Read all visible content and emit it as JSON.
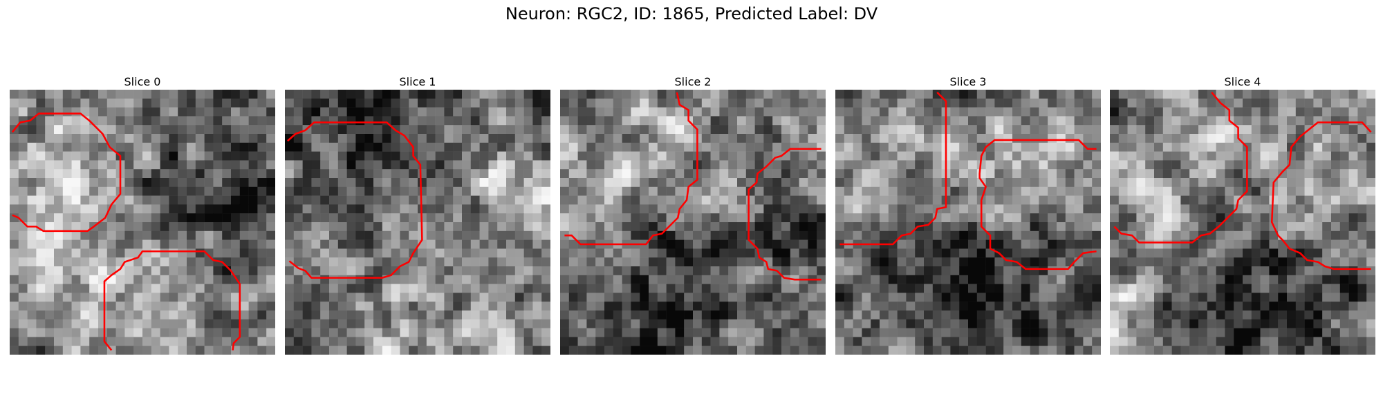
{
  "figure": {
    "title": "Neuron: RGC2, ID: 1865, Predicted Label: DV"
  },
  "grid_size": 30,
  "contour_color": "#ff0000",
  "panels": [
    {
      "title": "Slice 0",
      "seed": 11,
      "blobs": [
        {
          "cx": 6,
          "cy": 8,
          "r": 7,
          "v": 0.22
        },
        {
          "cx": 22,
          "cy": 12,
          "r": 6,
          "v": -0.32
        },
        {
          "cx": 20,
          "cy": 24,
          "r": 6,
          "v": 0.12
        },
        {
          "cx": 8,
          "cy": 22,
          "r": 6,
          "v": 0.18
        }
      ],
      "contours": [
        [
          [
            0.3,
            4.8
          ],
          [
            1.2,
            3.7
          ],
          [
            2.3,
            3.5
          ],
          [
            3.3,
            2.7
          ],
          [
            8.0,
            2.7
          ],
          [
            9.0,
            3.5
          ],
          [
            10.5,
            5
          ],
          [
            11.3,
            6.5
          ],
          [
            12.5,
            7.5
          ],
          [
            12.5,
            11.8
          ],
          [
            11.5,
            13
          ],
          [
            10.8,
            14.5
          ],
          [
            9.5,
            15.5
          ],
          [
            8.8,
            16
          ],
          [
            3.8,
            16
          ],
          [
            3.0,
            15.5
          ],
          [
            2.0,
            15.5
          ],
          [
            1.0,
            14.5
          ],
          [
            0.3,
            14.2
          ]
        ],
        [
          [
            11.5,
            29.5
          ],
          [
            10.7,
            28.5
          ],
          [
            10.7,
            21.7
          ],
          [
            11.5,
            21
          ],
          [
            12.5,
            20.3
          ],
          [
            13.0,
            19.5
          ],
          [
            14.5,
            19
          ],
          [
            15,
            18.3
          ],
          [
            22,
            18.3
          ],
          [
            23,
            19.3
          ],
          [
            24,
            19.5
          ],
          [
            25,
            20.5
          ],
          [
            26,
            22
          ],
          [
            26,
            28
          ],
          [
            25.3,
            28.7
          ],
          [
            25.2,
            29.5
          ]
        ]
      ]
    },
    {
      "title": "Slice 1",
      "seed": 23,
      "blobs": [
        {
          "cx": 10,
          "cy": 10,
          "r": 8,
          "v": -0.05
        },
        {
          "cx": 25,
          "cy": 11,
          "r": 4,
          "v": 0.35
        },
        {
          "cx": 8,
          "cy": 2,
          "r": 5,
          "v": -0.3
        },
        {
          "cx": 15,
          "cy": 27,
          "r": 6,
          "v": 0.15
        }
      ],
      "contours": [
        [
          [
            0.3,
            5.8
          ],
          [
            1.2,
            5
          ],
          [
            2.3,
            4.6
          ],
          [
            3.3,
            3.7
          ],
          [
            11.5,
            3.7
          ],
          [
            12.5,
            4.6
          ],
          [
            13.5,
            5.2
          ],
          [
            14.5,
            6.5
          ],
          [
            14.5,
            7.5
          ],
          [
            15.3,
            8.5
          ],
          [
            15.5,
            17
          ],
          [
            14.5,
            18.5
          ],
          [
            14,
            19.5
          ],
          [
            13,
            20
          ],
          [
            12,
            21
          ],
          [
            11,
            21.3
          ],
          [
            3,
            21.3
          ],
          [
            2.3,
            20.5
          ],
          [
            1.5,
            20.2
          ],
          [
            0.5,
            19.4
          ]
        ]
      ]
    },
    {
      "title": "Slice 2",
      "seed": 37,
      "blobs": [
        {
          "cx": 7,
          "cy": 7,
          "r": 7,
          "v": 0.18
        },
        {
          "cx": 24,
          "cy": 12,
          "r": 4,
          "v": 0.08
        },
        {
          "cx": 14,
          "cy": 24,
          "r": 7,
          "v": -0.3
        },
        {
          "cx": 26,
          "cy": 14,
          "r": 3,
          "v": -0.25
        }
      ],
      "contours": [
        [
          [
            0.5,
            16.5
          ],
          [
            1.3,
            16.5
          ],
          [
            2.3,
            17.5
          ],
          [
            9.7,
            17.5
          ],
          [
            10.5,
            16.5
          ],
          [
            11.5,
            16.3
          ],
          [
            12.3,
            15.5
          ],
          [
            13.3,
            14.5
          ],
          [
            13.5,
            13.5
          ],
          [
            14.3,
            12.5
          ],
          [
            14.5,
            11
          ],
          [
            15.5,
            10.2
          ],
          [
            15.5,
            4.5
          ],
          [
            14.5,
            3.5
          ],
          [
            14.5,
            2.3
          ],
          [
            13.5,
            1.7
          ],
          [
            13.2,
            0.3
          ]
        ],
        [
          [
            29.5,
            6.7
          ],
          [
            26,
            6.7
          ],
          [
            25,
            7.5
          ],
          [
            24.3,
            7.7
          ],
          [
            23.3,
            8.7
          ],
          [
            22.3,
            9.5
          ],
          [
            22.2,
            10.5
          ],
          [
            21.3,
            11.3
          ],
          [
            21.3,
            17
          ],
          [
            22.3,
            18
          ],
          [
            22.5,
            19
          ],
          [
            23.3,
            19.5
          ],
          [
            23.5,
            20.3
          ],
          [
            24.5,
            20.5
          ],
          [
            25.3,
            21.3
          ],
          [
            26.5,
            21.5
          ],
          [
            29.5,
            21.5
          ]
        ]
      ]
    },
    {
      "title": "Slice 3",
      "seed": 53,
      "blobs": [
        {
          "cx": 5,
          "cy": 6,
          "r": 6,
          "v": 0.2
        },
        {
          "cx": 22,
          "cy": 11,
          "r": 5,
          "v": 0.32
        },
        {
          "cx": 15,
          "cy": 23,
          "r": 7,
          "v": -0.32
        },
        {
          "cx": 25,
          "cy": 14,
          "r": 3,
          "v": -0.3
        }
      ],
      "contours": [
        [
          [
            0.5,
            17.5
          ],
          [
            6.5,
            17.5
          ],
          [
            7.5,
            16.5
          ],
          [
            8.5,
            16.3
          ],
          [
            9.3,
            15.5
          ],
          [
            10.5,
            15.3
          ],
          [
            11.3,
            14.5
          ],
          [
            11.5,
            13.5
          ],
          [
            12.5,
            13.3
          ],
          [
            12.5,
            1.3
          ],
          [
            11.5,
            0.3
          ]
        ],
        [
          [
            29.5,
            6.7
          ],
          [
            28.5,
            6.7
          ],
          [
            27.5,
            5.7
          ],
          [
            18,
            5.7
          ],
          [
            17,
            6.5
          ],
          [
            16.5,
            7.5
          ],
          [
            16.3,
            9.5
          ],
          [
            16.3,
            10
          ],
          [
            17,
            11
          ],
          [
            16.5,
            12.5
          ],
          [
            16.5,
            15.5
          ],
          [
            17.5,
            16.5
          ],
          [
            17.5,
            18
          ],
          [
            18.5,
            18.5
          ],
          [
            19.3,
            19.3
          ],
          [
            20.5,
            19.5
          ],
          [
            21.5,
            20.3
          ],
          [
            26.3,
            20.3
          ],
          [
            27,
            19.5
          ],
          [
            28,
            18.5
          ],
          [
            29.5,
            18.3
          ]
        ]
      ]
    },
    {
      "title": "Slice 4",
      "seed": 71,
      "blobs": [
        {
          "cx": 7,
          "cy": 7,
          "r": 7,
          "v": 0.18
        },
        {
          "cx": 25,
          "cy": 10,
          "r": 4,
          "v": 0.3
        },
        {
          "cx": 16,
          "cy": 24,
          "r": 7,
          "v": -0.3
        },
        {
          "cx": 1,
          "cy": 25,
          "r": 3,
          "v": 0.3
        }
      ],
      "contours": [
        [
          [
            0.5,
            15.5
          ],
          [
            1.3,
            16.3
          ],
          [
            2.5,
            16.5
          ],
          [
            3.3,
            17.3
          ],
          [
            9.3,
            17.3
          ],
          [
            10.3,
            16.5
          ],
          [
            11.3,
            16.3
          ],
          [
            12.3,
            15.5
          ],
          [
            13.3,
            14.5
          ],
          [
            14.3,
            13.5
          ],
          [
            14.5,
            12.5
          ],
          [
            15.5,
            11.5
          ],
          [
            15.5,
            6.5
          ],
          [
            14.5,
            5.5
          ],
          [
            14.5,
            4.3
          ],
          [
            13.5,
            3.5
          ],
          [
            13.5,
            2.3
          ],
          [
            12.5,
            1.5
          ],
          [
            11.5,
            0.3
          ]
        ],
        [
          [
            29.5,
            4.8
          ],
          [
            28.5,
            3.7
          ],
          [
            23.5,
            3.7
          ],
          [
            22.5,
            4.5
          ],
          [
            21.5,
            5.3
          ],
          [
            20.5,
            6.5
          ],
          [
            20.3,
            8.5
          ],
          [
            19.5,
            9.3
          ],
          [
            18.5,
            10.5
          ],
          [
            18.3,
            15
          ],
          [
            19,
            16.5
          ],
          [
            19.5,
            17
          ],
          [
            20.3,
            18
          ],
          [
            21.5,
            18.5
          ],
          [
            22.3,
            19.3
          ],
          [
            23.5,
            19.5
          ],
          [
            24.3,
            20
          ],
          [
            25.3,
            20.3
          ],
          [
            29.5,
            20.3
          ]
        ]
      ]
    }
  ]
}
